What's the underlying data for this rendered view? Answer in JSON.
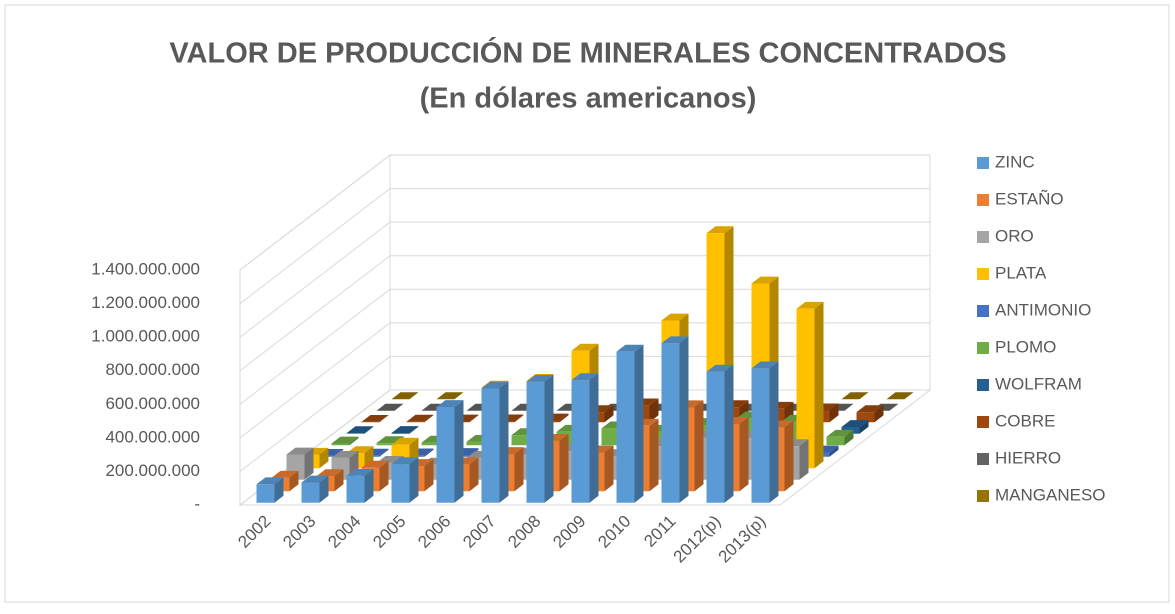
{
  "chart_data": {
    "type": "bar3d",
    "title": "VALOR DE PRODUCCIÓN DE MINERALES CONCENTRADOS",
    "subtitle": "(En dólares americanos)",
    "categories": [
      "2002",
      "2003",
      "2004",
      "2005",
      "2006",
      "2007",
      "2008",
      "2009",
      "2010",
      "2011",
      "2012(p)",
      "2013(p)"
    ],
    "series": [
      {
        "name": "ZINC",
        "color": "#5b9bd5",
        "values": [
          110000000,
          120000000,
          160000000,
          230000000,
          570000000,
          680000000,
          720000000,
          730000000,
          900000000,
          950000000,
          780000000,
          800000000
        ]
      },
      {
        "name": "ESTAÑO",
        "color": "#ed7d31",
        "values": [
          80000000,
          90000000,
          140000000,
          150000000,
          160000000,
          220000000,
          300000000,
          230000000,
          390000000,
          500000000,
          400000000,
          380000000
        ]
      },
      {
        "name": "ORO",
        "color": "#a5a5a5",
        "values": [
          150000000,
          130000000,
          100000000,
          90000000,
          130000000,
          150000000,
          170000000,
          140000000,
          200000000,
          250000000,
          250000000,
          200000000
        ]
      },
      {
        "name": "PLATA",
        "color": "#ffc000",
        "values": [
          80000000,
          90000000,
          140000000,
          170000000,
          480000000,
          520000000,
          700000000,
          650000000,
          880000000,
          1400000000,
          1100000000,
          950000000
        ]
      },
      {
        "name": "ANTIMONIO",
        "color": "#4472c4",
        "values": [
          5000000,
          6000000,
          8000000,
          10000000,
          15000000,
          20000000,
          25000000,
          18000000,
          30000000,
          35000000,
          30000000,
          25000000
        ]
      },
      {
        "name": "PLOMO",
        "color": "#70ad47",
        "values": [
          10000000,
          12000000,
          15000000,
          20000000,
          60000000,
          80000000,
          100000000,
          80000000,
          120000000,
          160000000,
          140000000,
          50000000
        ]
      },
      {
        "name": "WOLFRAM",
        "color": "#255e91",
        "values": [
          3000000,
          4000000,
          5000000,
          8000000,
          15000000,
          20000000,
          22000000,
          15000000,
          25000000,
          40000000,
          35000000,
          40000000
        ]
      },
      {
        "name": "COBRE",
        "color": "#9e480e",
        "values": [
          2000000,
          3000000,
          4000000,
          5000000,
          10000000,
          60000000,
          100000000,
          80000000,
          90000000,
          80000000,
          70000000,
          60000000
        ]
      },
      {
        "name": "HIERRO",
        "color": "#636363",
        "values": [
          0,
          0,
          0,
          0,
          0,
          0,
          0,
          0,
          0,
          0,
          0,
          0
        ]
      },
      {
        "name": "MANGANESO",
        "color": "#997300",
        "values": [
          0,
          0,
          0,
          0,
          0,
          0,
          0,
          0,
          0,
          0,
          0,
          0
        ]
      }
    ],
    "ylim": [
      0,
      1400000000
    ],
    "yticks": [
      {
        "value": 0,
        "label": "-"
      },
      {
        "value": 200000000,
        "label": "200.000.000"
      },
      {
        "value": 400000000,
        "label": "400.000.000"
      },
      {
        "value": 600000000,
        "label": "600.000.000"
      },
      {
        "value": 800000000,
        "label": "800.000.000"
      },
      {
        "value": 1000000000,
        "label": "1.000.000.000"
      },
      {
        "value": 1200000000,
        "label": "1.200.000.000"
      },
      {
        "value": 1400000000,
        "label": "1.400.000.000"
      }
    ],
    "grid": true,
    "legend": "right"
  }
}
